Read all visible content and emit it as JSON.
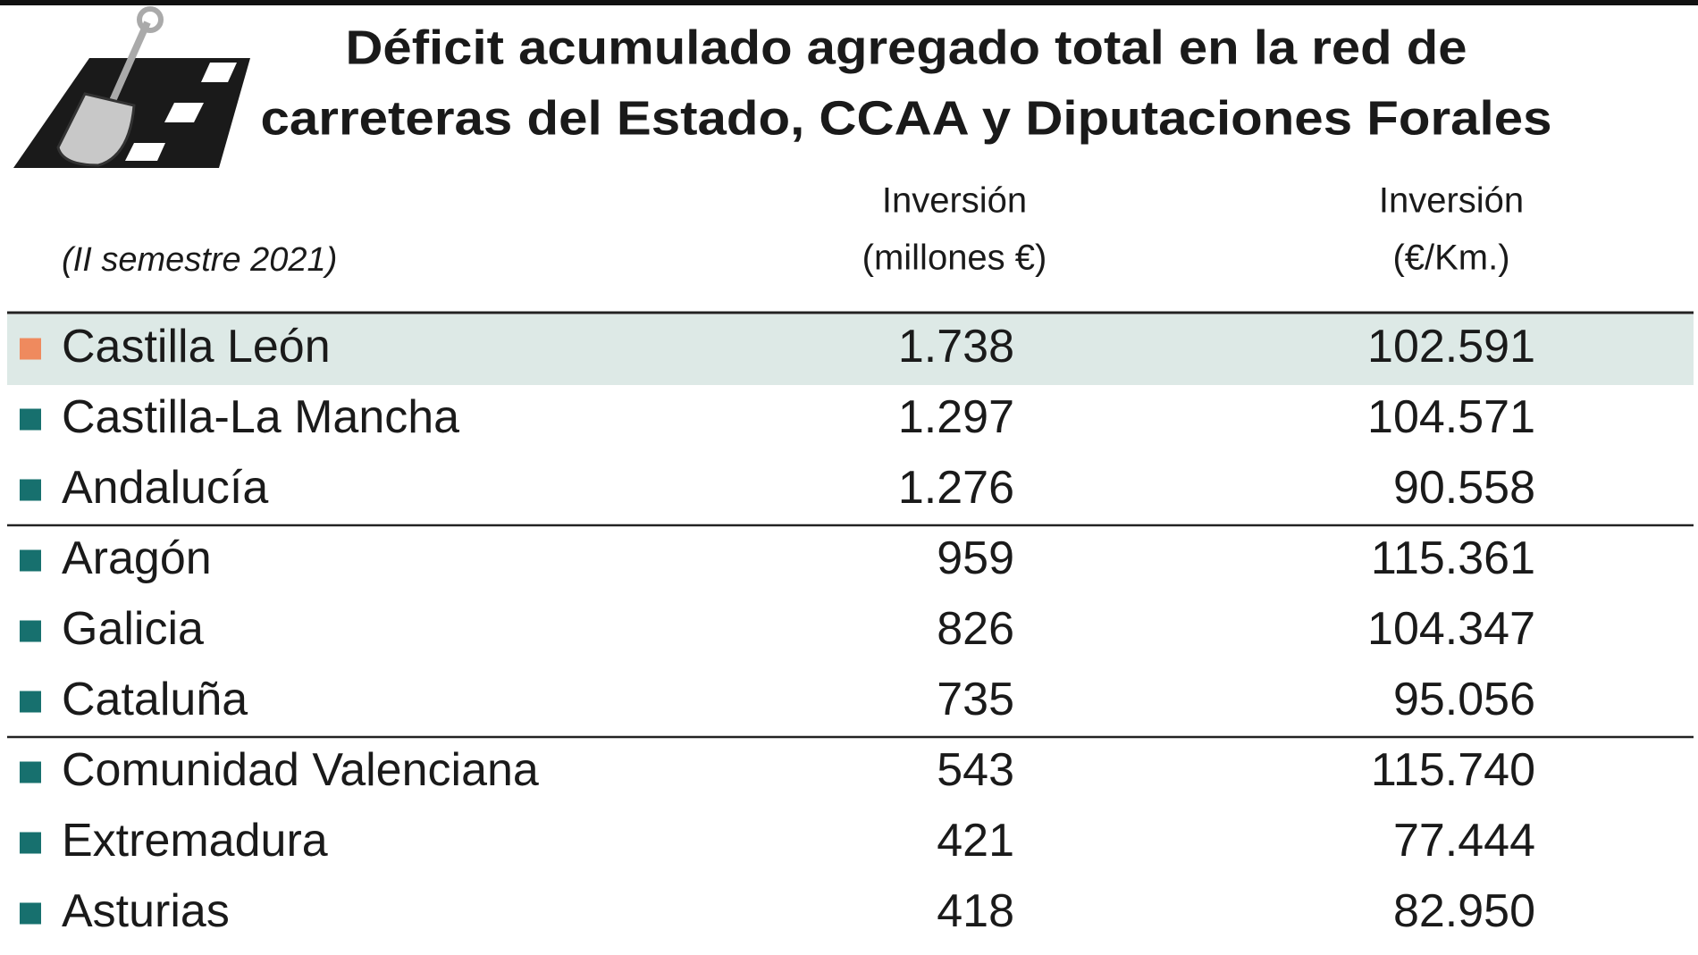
{
  "title": [
    "Déficit acumulado agregado total en la red de",
    "carreteras del Estado, CCAA y Diputaciones Forales"
  ],
  "subtitle": "(II semestre 2021)",
  "table": {
    "columns": [
      [
        "Inversión",
        "(millones €)"
      ],
      [
        "Inversión",
        "(€/Km.)"
      ]
    ],
    "rows": [
      {
        "name": "Castilla León",
        "values": [
          "1.738",
          "102.591"
        ],
        "color": "#ef8a5e",
        "highlight": true
      },
      {
        "name": "Castilla-La Mancha",
        "values": [
          "1.297",
          "104.571"
        ],
        "color": "#17706e"
      },
      {
        "name": "Andalucía",
        "values": [
          "1.276",
          "90.558"
        ],
        "color": "#17706e"
      },
      {
        "name": "Aragón",
        "values": [
          "959",
          "115.361"
        ],
        "color": "#17706e"
      },
      {
        "name": "Galicia",
        "values": [
          "826",
          "104.347"
        ],
        "color": "#17706e"
      },
      {
        "name": "Cataluña",
        "values": [
          "735",
          "95.056"
        ],
        "color": "#17706e"
      },
      {
        "name": "Comunidad Valenciana",
        "values": [
          "543",
          "115.740"
        ],
        "color": "#17706e"
      },
      {
        "name": "Extremadura",
        "values": [
          "421",
          "77.444"
        ],
        "color": "#17706e"
      },
      {
        "name": "Asturias",
        "values": [
          "418",
          "82.950"
        ],
        "color": "#17706e"
      }
    ],
    "separators_after": [
      2,
      5
    ]
  }
}
